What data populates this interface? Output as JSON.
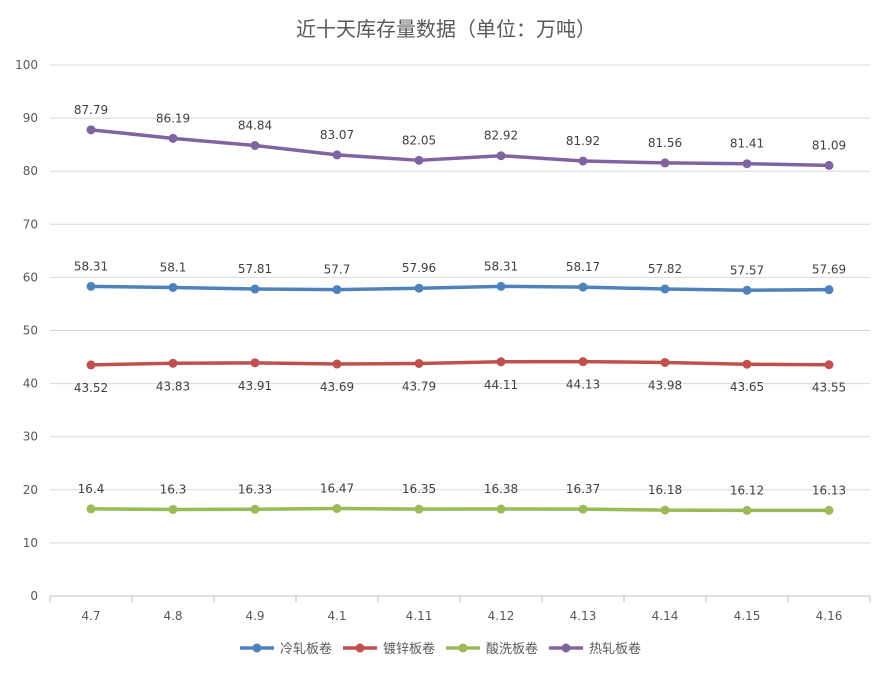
{
  "chart_data": {
    "type": "line",
    "title": "近十天库存量数据（单位：万吨）",
    "categories": [
      "4.7",
      "4.8",
      "4.9",
      "4.1",
      "4.11",
      "4.12",
      "4.13",
      "4.14",
      "4.15",
      "4.16"
    ],
    "ylim": [
      0,
      100
    ],
    "yticks": [
      "0",
      "10",
      "20",
      "30",
      "40",
      "50",
      "60",
      "70",
      "80",
      "90",
      "100"
    ],
    "grid": true,
    "legend_position": "bottom",
    "series": [
      {
        "name": "冷轧板卷",
        "color": "#4f81bd",
        "label_position": "above",
        "values": [
          58.31,
          58.1,
          57.81,
          57.7,
          57.96,
          58.31,
          58.17,
          57.82,
          57.57,
          57.69
        ]
      },
      {
        "name": "镀锌板卷",
        "color": "#c0504d",
        "label_position": "below",
        "values": [
          43.52,
          43.83,
          43.91,
          43.69,
          43.79,
          44.11,
          44.13,
          43.98,
          43.65,
          43.55
        ]
      },
      {
        "name": "酸洗板卷",
        "color": "#9bbb59",
        "label_position": "above",
        "values": [
          16.4,
          16.3,
          16.33,
          16.47,
          16.35,
          16.38,
          16.37,
          16.18,
          16.12,
          16.13
        ]
      },
      {
        "name": "热轧板卷",
        "color": "#8064a2",
        "label_position": "above",
        "values": [
          87.79,
          86.19,
          84.84,
          83.07,
          82.05,
          82.92,
          81.92,
          81.56,
          81.41,
          81.09
        ]
      }
    ]
  }
}
